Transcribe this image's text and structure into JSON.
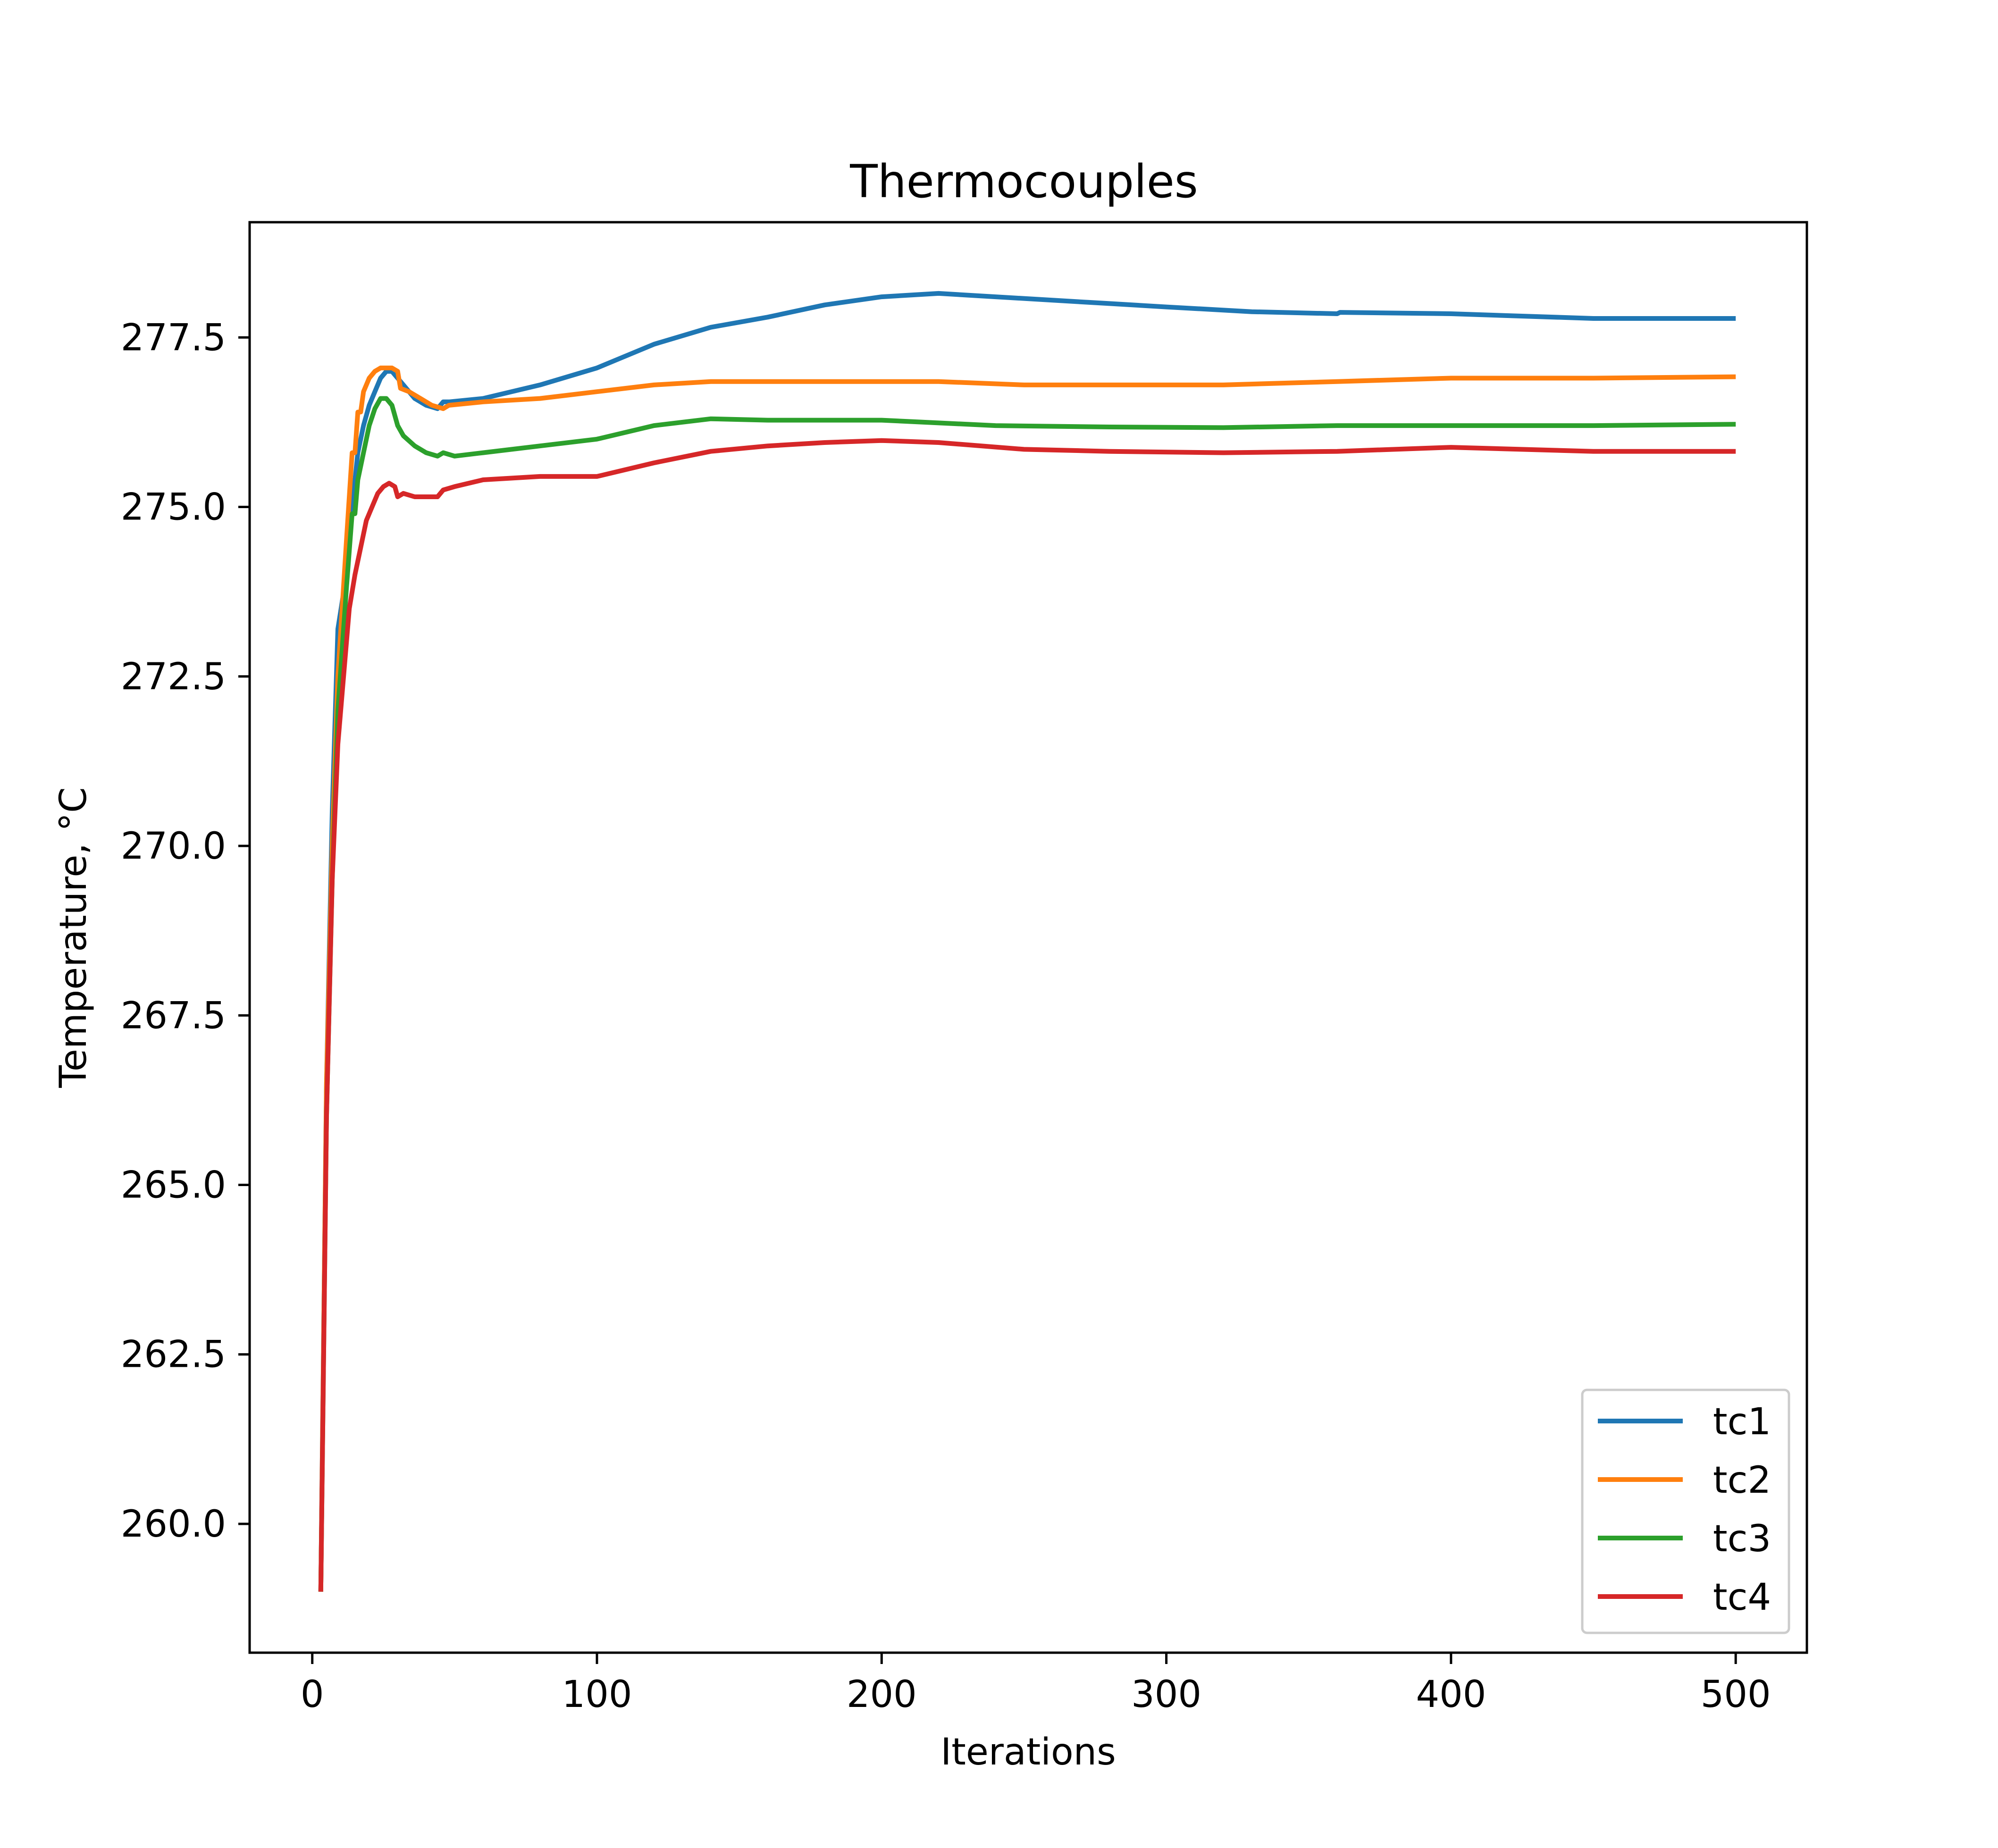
{
  "chart_data": {
    "type": "line",
    "title": "Thermocouples",
    "xlabel": "Iterations",
    "ylabel": "Temperature, °C",
    "xlim": [
      -22,
      525
    ],
    "ylim": [
      258.1,
      279.2
    ],
    "xticks": [
      0,
      100,
      200,
      300,
      400,
      500
    ],
    "xtick_labels": [
      "0",
      "100",
      "200",
      "300",
      "400",
      "500"
    ],
    "yticks": [
      260.0,
      262.5,
      265.0,
      267.5,
      270.0,
      272.5,
      275.0,
      277.5
    ],
    "ytick_labels": [
      "260.0",
      "262.5",
      "265.0",
      "267.5",
      "270.0",
      "272.5",
      "275.0",
      "277.5"
    ],
    "grid": false,
    "legend_position": "lower-right",
    "series": [
      {
        "name": "tc1",
        "color": "#1f77b4",
        "x": [
          3,
          5,
          7,
          9,
          12,
          14,
          16,
          18,
          20,
          22,
          24,
          26,
          28,
          30,
          32,
          36,
          40,
          44,
          46,
          48,
          60,
          80,
          100,
          120,
          140,
          160,
          180,
          200,
          220,
          240,
          260,
          280,
          300,
          330,
          360,
          361,
          400,
          450,
          500
        ],
        "y": [
          259.0,
          266.5,
          270.5,
          273.2,
          274.0,
          275.0,
          275.8,
          276.2,
          276.5,
          276.7,
          276.9,
          277.0,
          277.0,
          276.9,
          276.8,
          276.6,
          276.5,
          276.45,
          276.55,
          276.55,
          276.6,
          276.8,
          277.05,
          277.4,
          277.65,
          277.8,
          277.98,
          278.1,
          278.15,
          278.1,
          278.05,
          278.0,
          277.95,
          277.88,
          277.85,
          277.87,
          277.85,
          277.78,
          277.78
        ]
      },
      {
        "name": "tc2",
        "color": "#ff7f0e",
        "x": [
          3,
          5,
          7,
          9,
          12,
          14,
          15,
          16,
          17,
          18,
          20,
          22,
          24,
          26,
          28,
          30,
          31,
          34,
          38,
          42,
          46,
          48,
          60,
          80,
          100,
          120,
          140,
          160,
          180,
          200,
          220,
          250,
          280,
          320,
          360,
          400,
          450,
          500
        ],
        "y": [
          259.0,
          266.5,
          270.0,
          272.5,
          274.5,
          275.8,
          275.8,
          276.4,
          276.4,
          276.7,
          276.9,
          277.0,
          277.05,
          277.05,
          277.05,
          277.0,
          276.75,
          276.7,
          276.6,
          276.5,
          276.45,
          276.5,
          276.55,
          276.6,
          276.7,
          276.8,
          276.85,
          276.85,
          276.85,
          276.85,
          276.85,
          276.8,
          276.8,
          276.8,
          276.85,
          276.9,
          276.9,
          276.92
        ]
      },
      {
        "name": "tc3",
        "color": "#2ca02c",
        "x": [
          3,
          5,
          7,
          9,
          12,
          14,
          15,
          16,
          17,
          18,
          20,
          22,
          24,
          26,
          28,
          30,
          32,
          36,
          40,
          44,
          46,
          50,
          60,
          80,
          100,
          120,
          140,
          160,
          200,
          240,
          280,
          320,
          360,
          400,
          450,
          500
        ],
        "y": [
          259.0,
          266.0,
          269.5,
          272.0,
          273.8,
          274.9,
          274.9,
          275.4,
          275.6,
          275.8,
          276.2,
          276.45,
          276.6,
          276.6,
          276.5,
          276.2,
          276.05,
          275.9,
          275.8,
          275.75,
          275.8,
          275.75,
          275.8,
          275.9,
          276.0,
          276.2,
          276.3,
          276.28,
          276.28,
          276.2,
          276.18,
          276.17,
          276.2,
          276.2,
          276.2,
          276.22
        ]
      },
      {
        "name": "tc4",
        "color": "#d62728",
        "x": [
          3,
          5,
          7,
          9,
          11,
          13,
          15,
          17,
          19,
          21,
          23,
          25,
          27,
          29,
          30,
          32,
          36,
          40,
          44,
          46,
          50,
          60,
          80,
          100,
          120,
          140,
          160,
          180,
          200,
          220,
          250,
          280,
          320,
          360,
          400,
          450,
          500
        ],
        "y": [
          259.0,
          266.0,
          269.5,
          271.5,
          272.5,
          273.5,
          274.0,
          274.4,
          274.8,
          275.0,
          275.2,
          275.3,
          275.35,
          275.3,
          275.15,
          275.2,
          275.15,
          275.15,
          275.15,
          275.25,
          275.3,
          275.4,
          275.45,
          275.45,
          275.65,
          275.82,
          275.9,
          275.95,
          275.98,
          275.95,
          275.85,
          275.82,
          275.8,
          275.82,
          275.88,
          275.82,
          275.82
        ]
      }
    ]
  }
}
